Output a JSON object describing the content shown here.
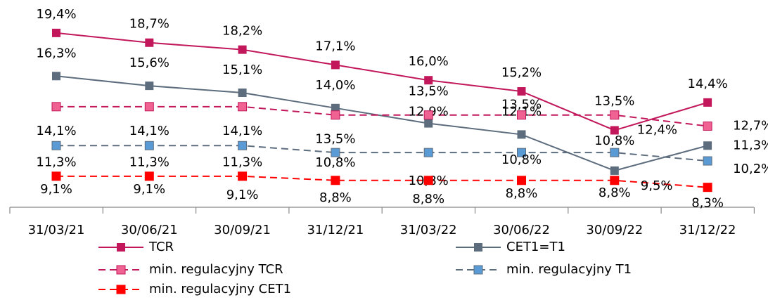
{
  "chart_data": {
    "type": "line",
    "categories": [
      "31/03/21",
      "30/06/21",
      "30/09/21",
      "31/12/21",
      "31/03/22",
      "30/06/22",
      "30/09/22",
      "31/12/22"
    ],
    "series": [
      {
        "name": "TCR",
        "color": "#c2185b",
        "marker": "#c2185b",
        "dashed": false,
        "values": [
          19.4,
          18.7,
          18.2,
          17.1,
          16.0,
          15.2,
          12.4,
          14.4
        ],
        "value_labels": [
          "19,4%",
          "18,7%",
          "18,2%",
          "17,1%",
          "16,0%",
          "15,2%",
          "12,4%",
          "14,4%"
        ]
      },
      {
        "name": "CET1=T1",
        "color": "#5d6d7e",
        "marker": "#5d6d7e",
        "dashed": false,
        "values": [
          16.3,
          15.6,
          15.1,
          14.0,
          12.9,
          12.1,
          9.5,
          11.3
        ],
        "value_labels": [
          "16,3%",
          "15,6%",
          "15,1%",
          "14,0%",
          "12,9%",
          "12,1%",
          "9,5%",
          "11,3%"
        ]
      },
      {
        "name": "min. regulacyjny TCR",
        "color": "#c2185b",
        "marker": "#f06292",
        "dashed": true,
        "values": [
          14.1,
          14.1,
          14.1,
          13.5,
          13.5,
          13.5,
          13.5,
          12.7
        ],
        "value_labels": [
          "14,1%",
          "14,1%",
          "14,1%",
          "13,5%",
          "13,5%",
          "13,5%",
          "13,5%",
          "12,7%"
        ]
      },
      {
        "name": "min. regulacyjny T1",
        "color": "#5d6d7e",
        "marker": "#5b9bd5",
        "dashed": true,
        "values": [
          11.3,
          11.3,
          11.3,
          10.8,
          10.8,
          10.8,
          10.8,
          10.2
        ],
        "value_labels": [
          "11,3%",
          "11,3%",
          "11,3%",
          "10,8%",
          "10,8%",
          "10,8%",
          "10,8%",
          "10,2%"
        ]
      },
      {
        "name": "min. regulacyjny CET1",
        "color": "#ff0000",
        "marker": "#ff0000",
        "dashed": true,
        "values": [
          9.1,
          9.1,
          9.1,
          8.8,
          8.8,
          8.8,
          8.8,
          8.3
        ],
        "value_labels": [
          "9,1%",
          "9,1%",
          "9,1%",
          "8,8%",
          "8,8%",
          "8,8%",
          "8,8%",
          "8,3%"
        ]
      }
    ]
  }
}
